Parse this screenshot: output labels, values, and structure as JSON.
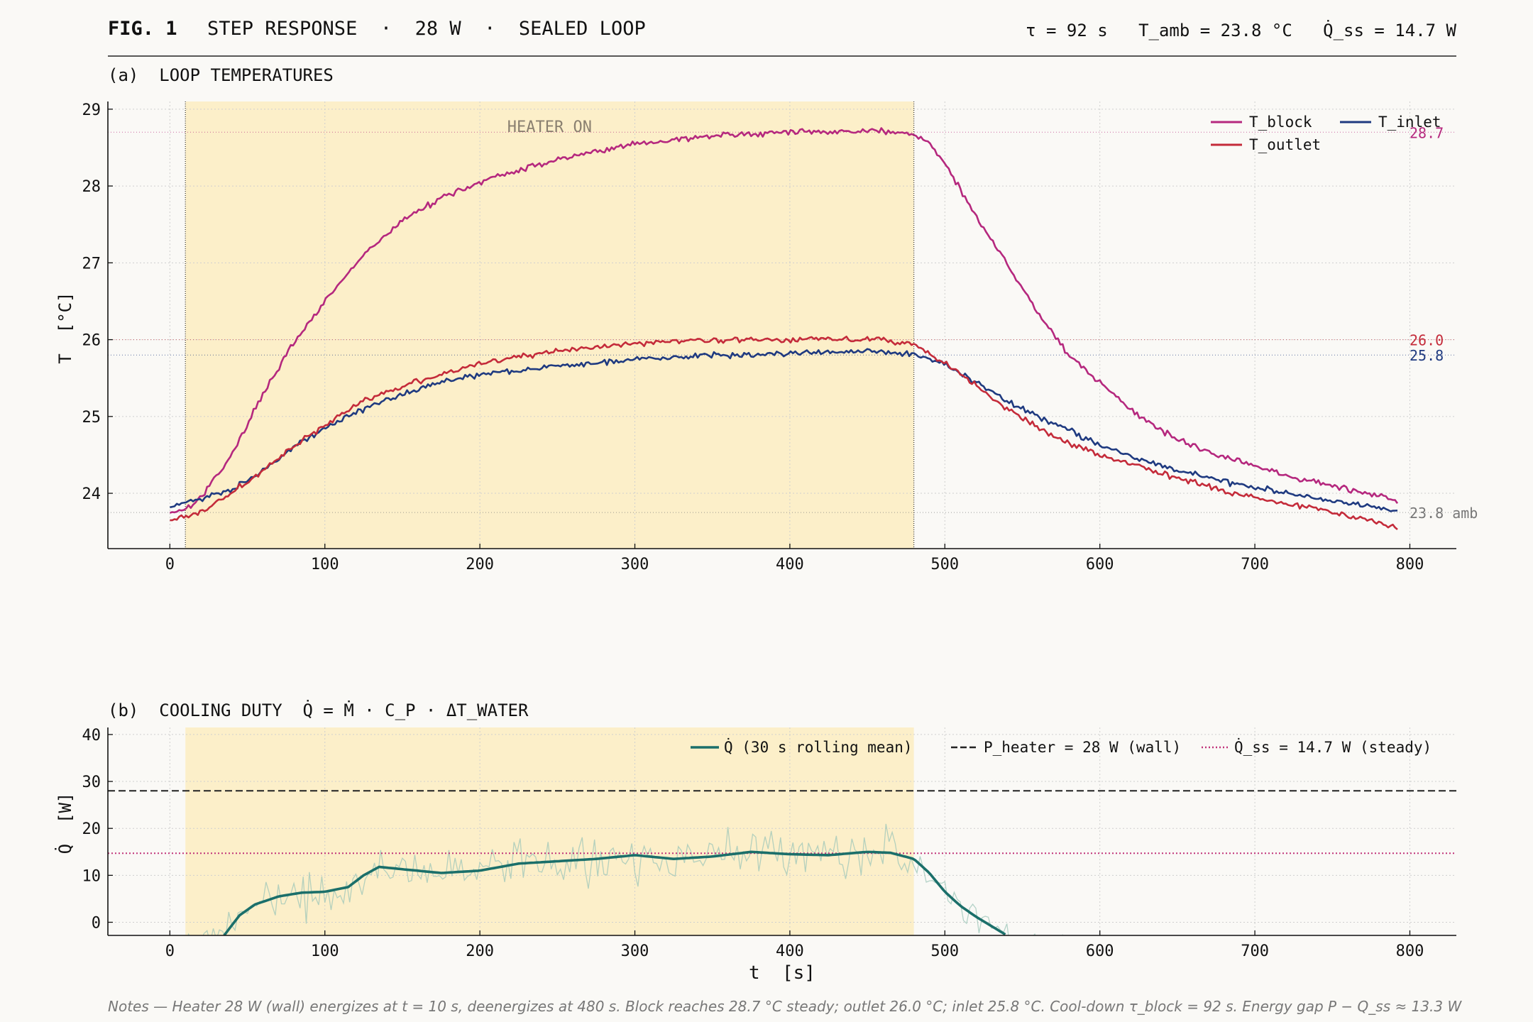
{
  "header": {
    "fig_label": "FIG. 1",
    "title": "STEP RESPONSE  ·  28 W  ·  SEALED LOOP",
    "params": "τ = 92 s   T_amb = 23.8 °C   Q̇_ss = 14.7 W"
  },
  "chart_data": [
    {
      "type": "line",
      "panel_label": "(a)  LOOP TEMPERATURES",
      "xlabel": "",
      "ylabel": "T  [°C]",
      "xlim": [
        -40,
        830
      ],
      "ylim": [
        23.28,
        29.1
      ],
      "xticks": [
        0,
        100,
        200,
        300,
        400,
        500,
        600,
        700,
        800
      ],
      "yticks": [
        24,
        25,
        26,
        27,
        28,
        29
      ],
      "grid": true,
      "legend_position": "top-right",
      "heater_span": [
        10,
        480
      ],
      "annotation": "HEATER ON",
      "reference_lines": [
        {
          "y": 28.7,
          "label": "28.7",
          "color": "#b5287e"
        },
        {
          "y": 26.0,
          "label": "26.0",
          "color": "#c42b3a"
        },
        {
          "y": 25.8,
          "label": "25.8",
          "color": "#1f3a80"
        },
        {
          "y": 23.75,
          "label": "23.8 amb",
          "color": "#777777"
        }
      ],
      "series": [
        {
          "name": "T_block",
          "color": "#b5287e",
          "x": [
            0,
            10,
            20,
            40,
            60,
            80,
            100,
            125,
            150,
            175,
            200,
            250,
            300,
            350,
            400,
            450,
            480,
            490,
            500,
            520,
            540,
            560,
            580,
            600,
            625,
            650,
            675,
            700,
            725,
            750,
            775,
            792
          ],
          "y": [
            23.75,
            23.8,
            23.95,
            24.5,
            25.3,
            25.95,
            26.5,
            27.1,
            27.55,
            27.85,
            28.05,
            28.35,
            28.55,
            28.65,
            28.7,
            28.72,
            28.68,
            28.55,
            28.3,
            27.6,
            27.0,
            26.35,
            25.8,
            25.45,
            25.0,
            24.7,
            24.5,
            24.35,
            24.2,
            24.1,
            24.0,
            23.9
          ]
        },
        {
          "name": "T_inlet",
          "color": "#1f3a80",
          "x": [
            0,
            10,
            20,
            40,
            60,
            80,
            100,
            125,
            150,
            175,
            200,
            250,
            300,
            350,
            400,
            450,
            480,
            500,
            520,
            540,
            560,
            580,
            600,
            625,
            650,
            675,
            700,
            725,
            750,
            775,
            792
          ],
          "y": [
            23.82,
            23.88,
            23.92,
            24.05,
            24.3,
            24.6,
            24.85,
            25.1,
            25.3,
            25.45,
            25.55,
            25.65,
            25.75,
            25.8,
            25.82,
            25.85,
            25.82,
            25.68,
            25.45,
            25.2,
            25.0,
            24.82,
            24.62,
            24.45,
            24.3,
            24.18,
            24.08,
            23.98,
            23.9,
            23.82,
            23.77
          ]
        },
        {
          "name": "T_outlet",
          "color": "#c42b3a",
          "x": [
            0,
            10,
            20,
            40,
            60,
            80,
            100,
            125,
            150,
            175,
            200,
            250,
            300,
            350,
            400,
            450,
            480,
            500,
            520,
            540,
            560,
            580,
            600,
            625,
            650,
            675,
            700,
            725,
            750,
            775,
            792
          ],
          "y": [
            23.65,
            23.7,
            23.75,
            24.0,
            24.3,
            24.6,
            24.9,
            25.2,
            25.4,
            25.55,
            25.7,
            25.85,
            25.95,
            26.0,
            26.0,
            26.02,
            25.95,
            25.7,
            25.4,
            25.1,
            24.85,
            24.65,
            24.5,
            24.35,
            24.2,
            24.05,
            23.95,
            23.85,
            23.75,
            23.65,
            23.55
          ]
        }
      ]
    },
    {
      "type": "line",
      "panel_label": "(b)  COOLING DUTY  Q̇ = Ṁ · C_P · ΔT_WATER",
      "xlabel": "t  [s]",
      "ylabel": "Q̇  [W]",
      "xlim": [
        -40,
        830
      ],
      "ylim": [
        -2.8,
        41.5
      ],
      "xticks": [
        0,
        100,
        200,
        300,
        400,
        500,
        600,
        700,
        800
      ],
      "yticks": [
        0,
        10,
        20,
        30,
        40
      ],
      "grid": true,
      "legend_position": "top-right",
      "heater_span": [
        10,
        480
      ],
      "reference_lines": [
        {
          "y": 28.0,
          "name": "P_heater = 28 W (wall)",
          "style": "dashed",
          "color": "#222222"
        },
        {
          "y": 14.7,
          "name": "Q̇_ss = 14.7 W (steady)",
          "style": "dotted",
          "color": "#c1357a"
        }
      ],
      "series": [
        {
          "name": "Q̇  (30 s rolling mean)",
          "color": "#1b6f6a",
          "x": [
            35,
            45,
            55,
            70,
            85,
            100,
            115,
            125,
            135,
            150,
            175,
            200,
            225,
            250,
            275,
            300,
            325,
            350,
            375,
            400,
            425,
            450,
            465,
            480,
            490,
            500,
            510,
            520,
            530,
            540
          ],
          "y": [
            -2.8,
            1.5,
            3.8,
            5.5,
            6.3,
            6.5,
            7.5,
            10.0,
            11.8,
            11.3,
            10.5,
            11.0,
            12.5,
            13.0,
            13.5,
            14.3,
            13.5,
            14.0,
            15.0,
            14.5,
            14.3,
            15.0,
            14.8,
            13.5,
            10.5,
            6.5,
            3.5,
            1.2,
            -0.8,
            -2.8
          ]
        }
      ],
      "raw_signal": {
        "color": "#9cc6b8",
        "noise_amplitude_w": 7
      }
    }
  ],
  "notes": "Notes — Heater 28 W (wall) energizes at t = 10 s, deenergizes at 480 s. Block reaches 28.7 °C steady; outlet 26.0 °C; inlet 25.8 °C. Cool-down τ_block = 92 s. Energy gap P − Q_ss ≈ 13.3 W"
}
